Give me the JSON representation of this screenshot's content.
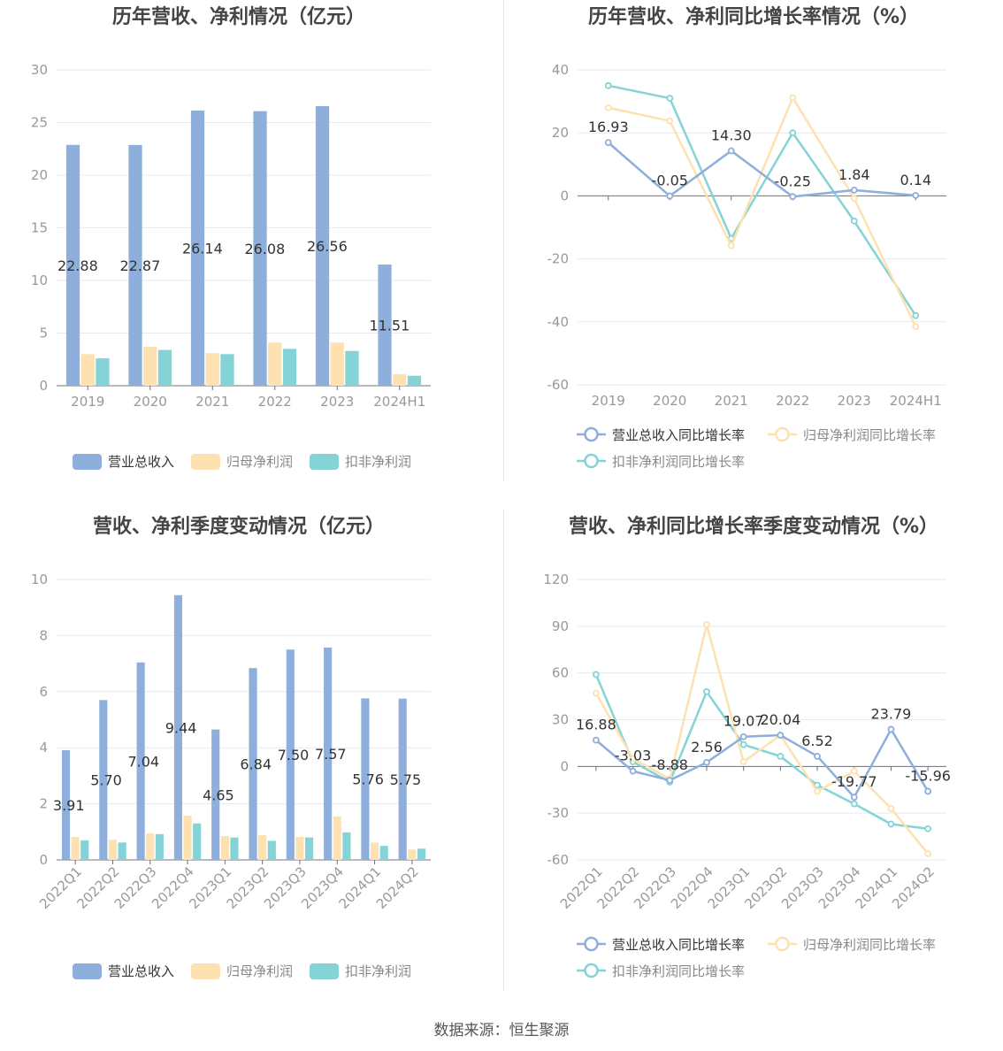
{
  "colors": {
    "revenue": "#8eaedb",
    "net_profit": "#fde1b0",
    "deducted_profit": "#84d3d6",
    "axis_text": "#999999",
    "grid": "#e6e9f0",
    "title": "#444444"
  },
  "source_note": "数据来源：恒生聚源",
  "chart_data": [
    {
      "id": "annual-bar",
      "type": "bar",
      "title": "历年营收、净利情况（亿元）",
      "categories": [
        "2019",
        "2020",
        "2021",
        "2022",
        "2023",
        "2024H1"
      ],
      "ylim": [
        0,
        30
      ],
      "yticks": [
        0,
        5,
        10,
        15,
        20,
        25,
        30
      ],
      "label_series": 0,
      "series": [
        {
          "name": "营业总收入",
          "values": [
            22.88,
            22.87,
            26.14,
            26.08,
            26.56,
            11.51
          ],
          "labels": [
            "22.88",
            "22.87",
            "26.14",
            "26.08",
            "26.56",
            "11.51"
          ]
        },
        {
          "name": "归母净利润",
          "values": [
            3.0,
            3.7,
            3.1,
            4.1,
            4.1,
            1.1
          ]
        },
        {
          "name": "扣非净利润",
          "values": [
            2.6,
            3.4,
            3.0,
            3.5,
            3.3,
            0.95
          ]
        }
      ]
    },
    {
      "id": "annual-line",
      "type": "line",
      "title": "历年营收、净利同比增长率情况（%）",
      "categories": [
        "2019",
        "2020",
        "2021",
        "2022",
        "2023",
        "2024H1"
      ],
      "ylim": [
        -60,
        40
      ],
      "yticks": [
        -60,
        -40,
        -20,
        0,
        20,
        40
      ],
      "label_series": 0,
      "series": [
        {
          "name": "营业总收入同比增长率",
          "values": [
            16.93,
            -0.05,
            14.3,
            -0.25,
            1.84,
            0.14
          ],
          "labels": [
            "16.93",
            "-0.05",
            "14.30",
            "-0.25",
            "1.84",
            "0.14"
          ]
        },
        {
          "name": "归母净利润同比增长率",
          "values": [
            28.0,
            23.8,
            -15.8,
            31.2,
            -0.8,
            -41.5
          ]
        },
        {
          "name": "扣非净利润同比增长率",
          "values": [
            35.0,
            31.0,
            -13.5,
            20.0,
            -8.0,
            -38.0
          ]
        }
      ]
    },
    {
      "id": "quarter-bar",
      "type": "bar",
      "title": "营收、净利季度变动情况（亿元）",
      "categories": [
        "2022Q1",
        "2022Q2",
        "2022Q3",
        "2022Q4",
        "2023Q1",
        "2023Q2",
        "2023Q3",
        "2023Q4",
        "2024Q1",
        "2024Q2"
      ],
      "ylim": [
        0,
        10
      ],
      "yticks": [
        0,
        2,
        4,
        6,
        8,
        10
      ],
      "label_series": 0,
      "series": [
        {
          "name": "营业总收入",
          "values": [
            3.91,
            5.7,
            7.04,
            9.44,
            4.65,
            6.84,
            7.5,
            7.57,
            5.76,
            5.75
          ],
          "labels": [
            "3.91",
            "5.70",
            "7.04",
            "9.44",
            "4.65",
            "6.84",
            "7.50",
            "7.57",
            "5.76",
            "5.75"
          ]
        },
        {
          "name": "归母净利润",
          "values": [
            0.82,
            0.72,
            0.95,
            1.58,
            0.85,
            0.88,
            0.82,
            1.55,
            0.62,
            0.37
          ]
        },
        {
          "name": "扣非净利润",
          "values": [
            0.7,
            0.62,
            0.92,
            1.3,
            0.8,
            0.68,
            0.8,
            0.98,
            0.5,
            0.4
          ]
        }
      ]
    },
    {
      "id": "quarter-line",
      "type": "line",
      "title": "营收、净利同比增长率季度变动情况（%）",
      "categories": [
        "2022Q1",
        "2022Q2",
        "2022Q3",
        "2022Q4",
        "2023Q1",
        "2023Q2",
        "2023Q3",
        "2023Q4",
        "2024Q1",
        "2024Q2"
      ],
      "ylim": [
        -60,
        120
      ],
      "yticks": [
        -60,
        -30,
        0,
        30,
        60,
        90,
        120
      ],
      "label_series": 0,
      "series": [
        {
          "name": "营业总收入同比增长率",
          "values": [
            16.88,
            -3.03,
            -8.88,
            2.56,
            19.07,
            20.04,
            6.52,
            -19.77,
            23.79,
            -15.96
          ],
          "labels": [
            "16.88",
            "-3.03",
            "-8.88",
            "2.56",
            "19.07",
            "20.04",
            "6.52",
            "-19.77",
            "23.79",
            "-15.96"
          ]
        },
        {
          "name": "归母净利润同比增长率",
          "values": [
            47.0,
            5.0,
            -8.0,
            91.0,
            3.0,
            20.0,
            -16.0,
            -3.0,
            -27.0,
            -56.0
          ]
        },
        {
          "name": "扣非净利润同比增长率",
          "values": [
            59.0,
            3.0,
            -10.0,
            48.0,
            14.0,
            6.5,
            -12.0,
            -24.0,
            -37.0,
            -40.0
          ]
        }
      ]
    }
  ]
}
